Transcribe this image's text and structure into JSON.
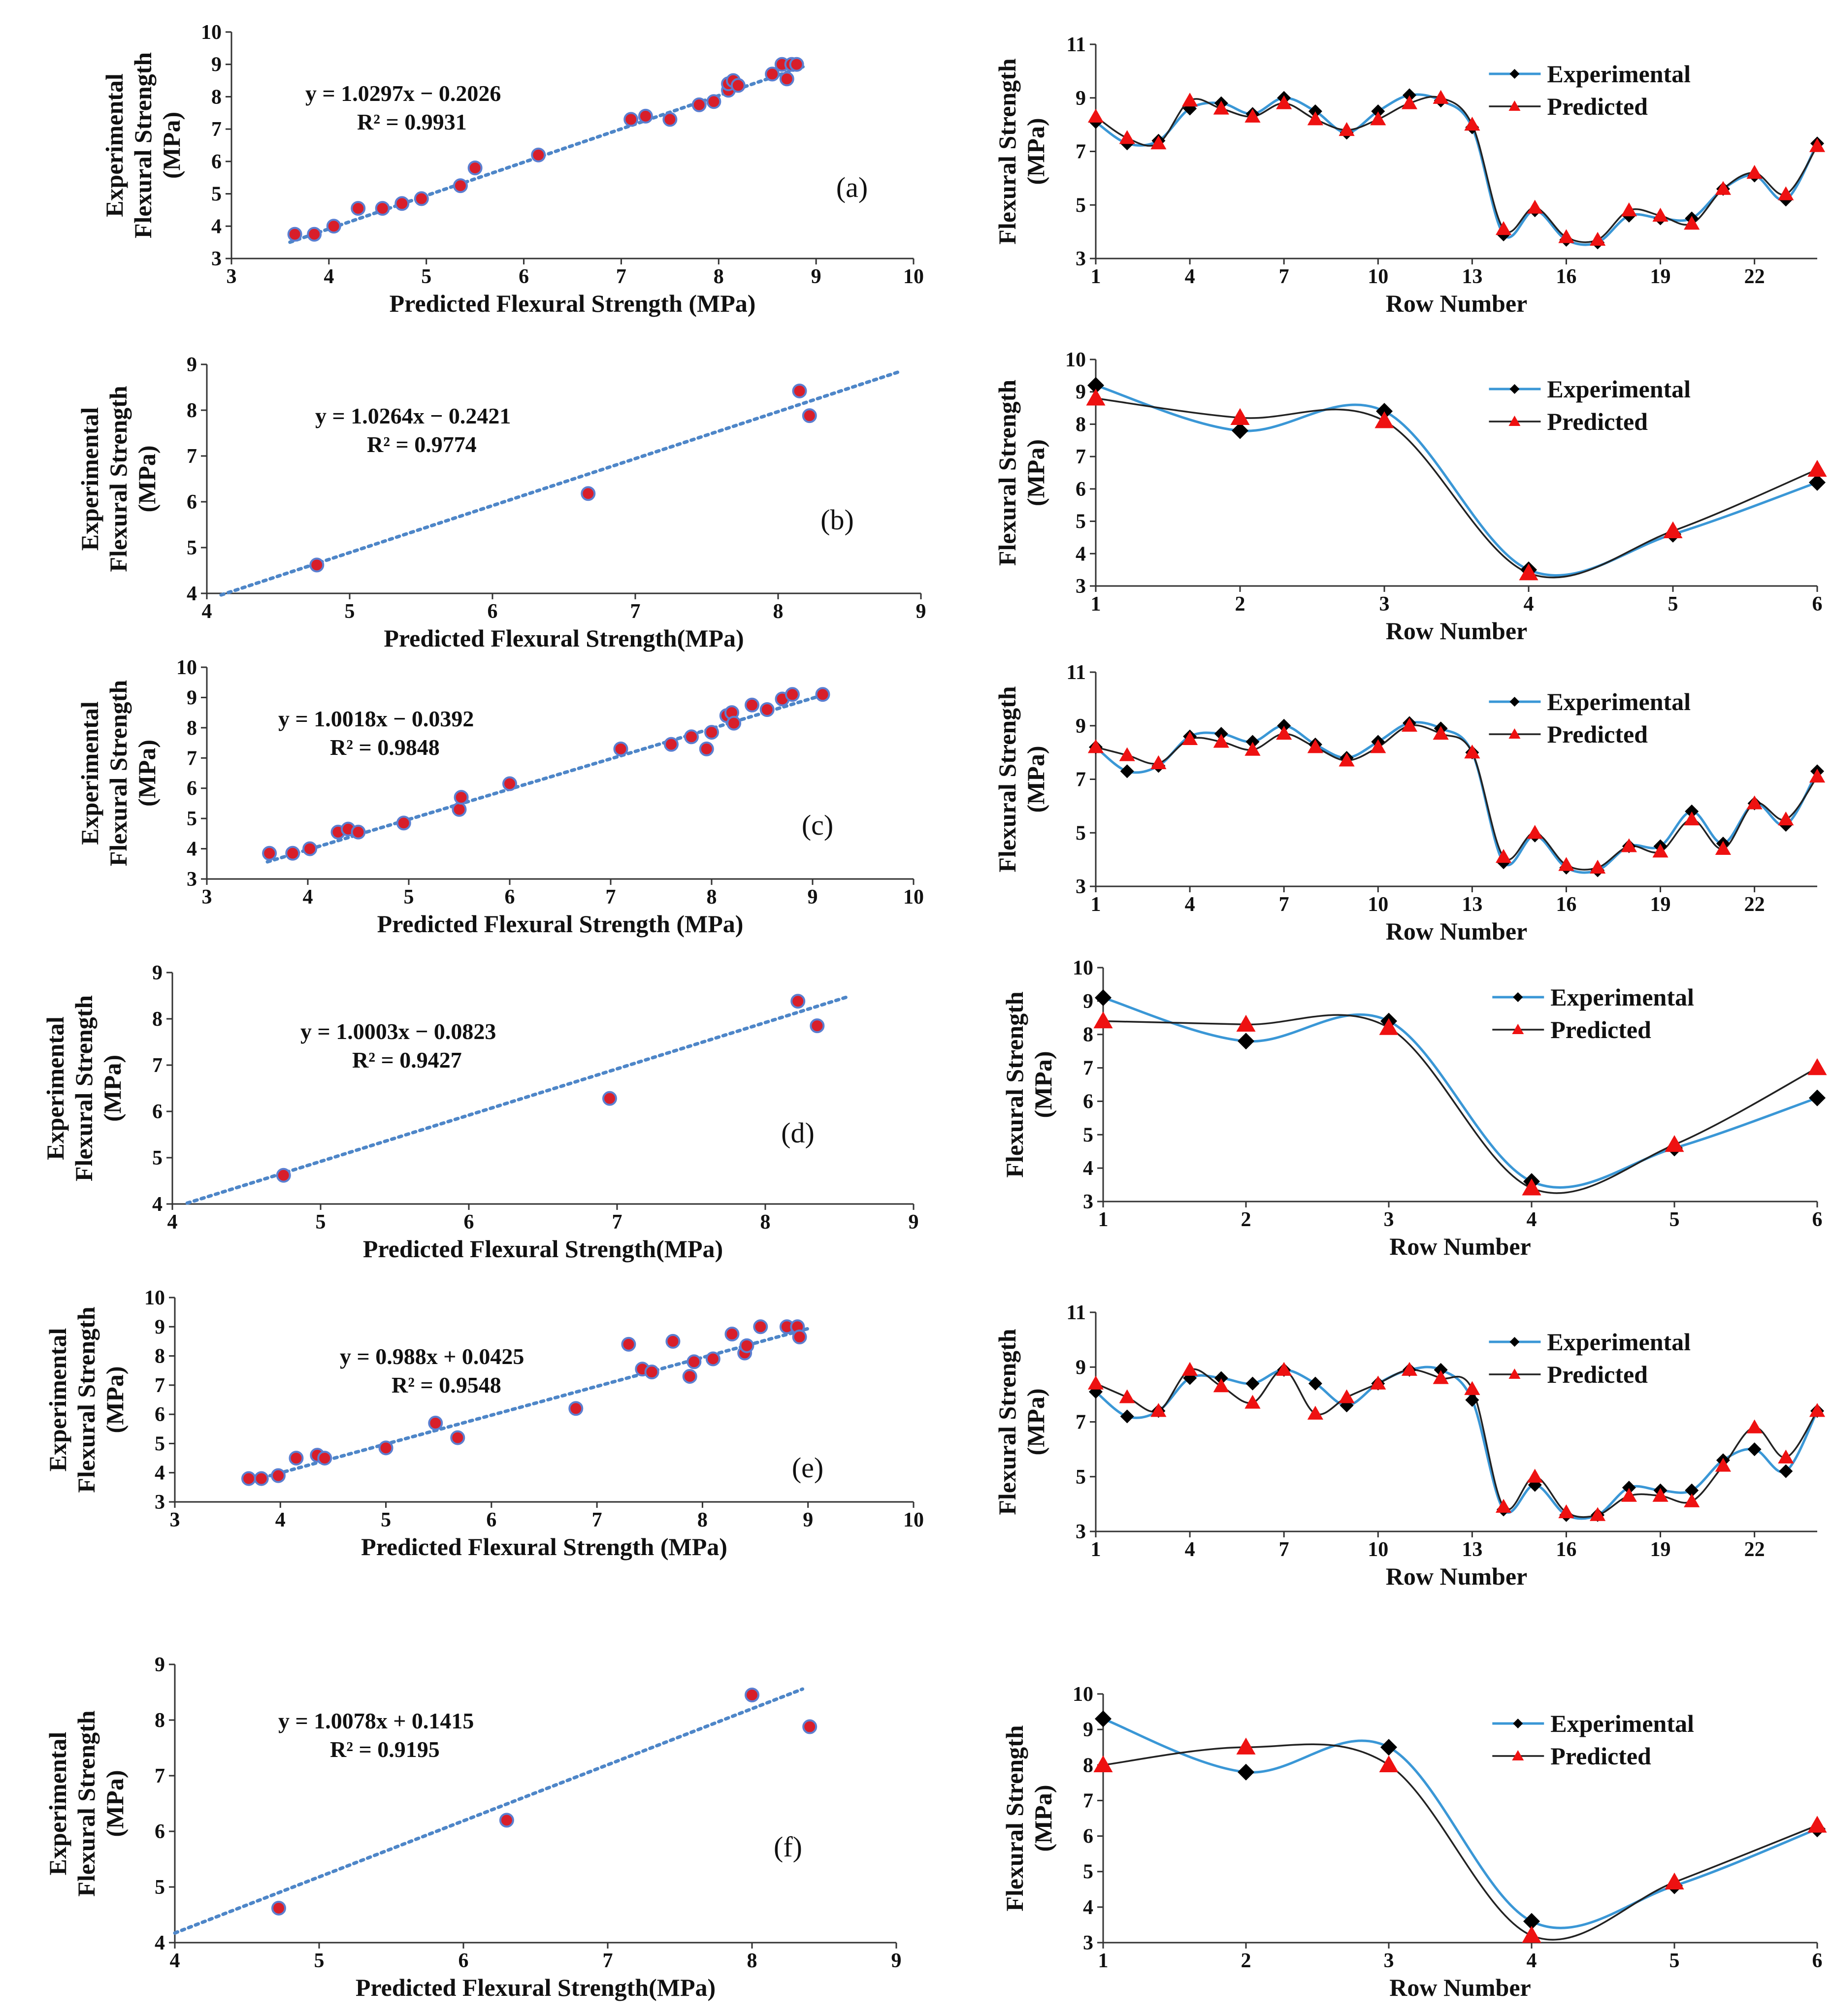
{
  "colors": {
    "scatter_fill": "#d81e2a",
    "scatter_edge": "#5b7fd1",
    "trend": "#4e86c8",
    "experimental_line": "#3a97d6",
    "predicted_line": "#222222",
    "experimental_marker": "#000000",
    "predicted_marker": "#ee1111",
    "axis": "#333333"
  },
  "chart_data": [
    {
      "id": "a",
      "type": "scatter",
      "panel_label": "(a)",
      "xlabel": "Predicted Flexural Strength (MPa)",
      "ylabel": [
        "Experimental",
        "Flexural Strength",
        "(MPa)"
      ],
      "equation": "y = 1.0297x − 0.2026",
      "r2": "R² = 0.9931",
      "xlim": [
        3,
        10
      ],
      "ylim": [
        3,
        10
      ],
      "xticks": [
        3,
        4,
        5,
        6,
        7,
        8,
        9,
        10
      ],
      "yticks": [
        3,
        4,
        5,
        6,
        7,
        8,
        9,
        10
      ],
      "trend": {
        "slope": 1.0297,
        "intercept": -0.2026,
        "x_range": [
          3.6,
          8.9
        ]
      },
      "x": [
        3.65,
        3.85,
        4.05,
        4.3,
        4.55,
        4.75,
        4.95,
        5.35,
        5.5,
        6.15,
        7.1,
        7.25,
        7.5,
        7.8,
        7.95,
        8.1,
        8.1,
        8.15,
        8.2,
        8.55,
        8.65,
        8.7,
        8.75,
        8.8
      ],
      "y": [
        3.75,
        3.75,
        4.0,
        4.55,
        4.55,
        4.7,
        4.85,
        5.25,
        5.8,
        6.2,
        7.3,
        7.4,
        7.3,
        7.75,
        7.85,
        8.2,
        8.4,
        8.5,
        8.35,
        8.7,
        9.0,
        8.55,
        9.0,
        9.0
      ]
    },
    {
      "id": "a2",
      "type": "line",
      "xlabel": "Row Number",
      "ylabel": [
        "Flexural Strength",
        "(MPa)"
      ],
      "xlim": [
        1,
        24
      ],
      "ylim": [
        3,
        11
      ],
      "xticks": [
        1,
        4,
        7,
        10,
        13,
        16,
        19,
        22
      ],
      "yticks": [
        3,
        5,
        7,
        9,
        11
      ],
      "legend": [
        "Experimental",
        "Predicted"
      ],
      "x": [
        1,
        2,
        3,
        4,
        5,
        6,
        7,
        8,
        9,
        10,
        11,
        12,
        13,
        14,
        15,
        16,
        17,
        18,
        19,
        20,
        21,
        22,
        23,
        24
      ],
      "series": [
        {
          "name": "Experimental",
          "values": [
            8.1,
            7.3,
            7.4,
            8.6,
            8.8,
            8.4,
            9.0,
            8.5,
            7.7,
            8.5,
            9.1,
            8.9,
            7.9,
            3.9,
            4.8,
            3.7,
            3.6,
            4.6,
            4.5,
            4.5,
            5.6,
            6.1,
            5.2,
            7.3
          ]
        },
        {
          "name": "Predicted",
          "values": [
            8.3,
            7.5,
            7.3,
            8.9,
            8.6,
            8.3,
            8.8,
            8.2,
            7.8,
            8.2,
            8.8,
            9.0,
            8.0,
            4.1,
            4.9,
            3.8,
            3.7,
            4.8,
            4.6,
            4.3,
            5.6,
            6.2,
            5.4,
            7.2
          ]
        }
      ]
    },
    {
      "id": "b",
      "type": "scatter",
      "panel_label": "(b)",
      "xlabel": "Predicted Flexural Strength(MPa)",
      "ylabel": [
        "Experimental",
        "Flexural Strength",
        "(MPa)"
      ],
      "equation": "y = 1.0264x − 0.2421",
      "r2": "R² = 0.9774",
      "xlim": [
        4,
        9
      ],
      "ylim": [
        4,
        9
      ],
      "xticks": [
        4,
        5,
        6,
        7,
        8,
        9
      ],
      "yticks": [
        4,
        5,
        6,
        7,
        8,
        9
      ],
      "trend": {
        "slope": 1.0264,
        "intercept": -0.2421,
        "x_range": [
          4.1,
          8.85
        ]
      },
      "x": [
        4.77,
        6.67,
        8.15,
        8.22
      ],
      "y": [
        4.62,
        6.18,
        8.42,
        7.88
      ]
    },
    {
      "id": "b2",
      "type": "line",
      "xlabel": "Row Number",
      "ylabel": [
        "Flexural Strength",
        "(MPa)"
      ],
      "xlim": [
        1,
        6
      ],
      "ylim": [
        3,
        10
      ],
      "xticks": [
        1,
        2,
        3,
        4,
        5,
        6
      ],
      "yticks": [
        3,
        4,
        5,
        6,
        7,
        8,
        9,
        10
      ],
      "legend": [
        "Experimental",
        "Predicted"
      ],
      "x": [
        1,
        2,
        3,
        4,
        5,
        6
      ],
      "series": [
        {
          "name": "Experimental",
          "values": [
            9.2,
            7.8,
            8.4,
            3.5,
            4.6,
            6.2
          ]
        },
        {
          "name": "Predicted",
          "values": [
            8.8,
            8.2,
            8.1,
            3.4,
            4.7,
            6.6
          ]
        }
      ]
    },
    {
      "id": "c",
      "type": "scatter",
      "panel_label": "(c)",
      "xlabel": "Predicted Flexural Strength (MPa)",
      "ylabel": [
        "Experimental",
        "Flexural Strength",
        "(MPa)"
      ],
      "equation": "y = 1.0018x − 0.0392",
      "r2": "R² = 0.9848",
      "xlim": [
        3,
        10
      ],
      "ylim": [
        3,
        10
      ],
      "xticks": [
        3,
        4,
        5,
        6,
        7,
        8,
        9,
        10
      ],
      "yticks": [
        3,
        4,
        5,
        6,
        7,
        8,
        9,
        10
      ],
      "trend": {
        "slope": 1.0018,
        "intercept": -0.0392,
        "x_range": [
          3.6,
          9.1
        ]
      },
      "x": [
        3.62,
        3.85,
        4.02,
        4.3,
        4.4,
        4.5,
        4.95,
        5.5,
        5.52,
        6.0,
        7.1,
        7.6,
        7.8,
        7.95,
        8.0,
        8.15,
        8.2,
        8.22,
        8.4,
        8.55,
        8.7,
        8.8,
        9.1
      ],
      "y": [
        3.85,
        3.85,
        4.0,
        4.55,
        4.65,
        4.55,
        4.85,
        5.3,
        5.7,
        6.15,
        7.3,
        7.45,
        7.7,
        7.3,
        7.85,
        8.4,
        8.5,
        8.15,
        8.75,
        8.6,
        8.95,
        9.1,
        9.1
      ]
    },
    {
      "id": "c2",
      "type": "line",
      "xlabel": "Row Number",
      "ylabel": [
        "Flexural Strength",
        "(MPa)"
      ],
      "xlim": [
        1,
        24
      ],
      "ylim": [
        3,
        11
      ],
      "xticks": [
        1,
        4,
        7,
        10,
        13,
        16,
        19,
        22
      ],
      "yticks": [
        3,
        5,
        7,
        9,
        11
      ],
      "legend": [
        "Experimental",
        "Predicted"
      ],
      "x": [
        1,
        2,
        3,
        4,
        5,
        6,
        7,
        8,
        9,
        10,
        11,
        12,
        13,
        14,
        15,
        16,
        17,
        18,
        19,
        20,
        21,
        22,
        23,
        24
      ],
      "series": [
        {
          "name": "Experimental",
          "values": [
            8.2,
            7.3,
            7.5,
            8.6,
            8.7,
            8.4,
            9.0,
            8.3,
            7.8,
            8.4,
            9.1,
            8.9,
            8.0,
            3.9,
            4.9,
            3.7,
            3.6,
            4.5,
            4.5,
            5.8,
            4.6,
            6.1,
            5.3,
            7.3
          ]
        },
        {
          "name": "Predicted",
          "values": [
            8.2,
            7.9,
            7.6,
            8.5,
            8.4,
            8.1,
            8.7,
            8.2,
            7.7,
            8.2,
            9.0,
            8.7,
            8.0,
            4.1,
            5.0,
            3.8,
            3.7,
            4.5,
            4.3,
            5.5,
            4.4,
            6.1,
            5.5,
            7.1
          ]
        }
      ]
    },
    {
      "id": "d",
      "type": "scatter",
      "panel_label": "(d)",
      "xlabel": "Predicted Flexural Strength(MPa)",
      "ylabel": [
        "Experimental",
        "Flexural Strength",
        "(MPa)"
      ],
      "equation": "y = 1.0003x − 0.0823",
      "r2": "R² = 0.9427",
      "xlim": [
        4,
        9
      ],
      "ylim": [
        4,
        9
      ],
      "xticks": [
        4,
        5,
        6,
        7,
        8,
        9
      ],
      "yticks": [
        4,
        5,
        6,
        7,
        8,
        9
      ],
      "trend": {
        "slope": 1.0003,
        "intercept": -0.0823,
        "x_range": [
          4.1,
          8.55
        ]
      },
      "x": [
        4.75,
        6.95,
        8.22,
        8.35
      ],
      "y": [
        4.62,
        6.28,
        8.38,
        7.85
      ]
    },
    {
      "id": "d2",
      "type": "line",
      "xlabel": "Row Number",
      "ylabel": [
        "Flexural Strength",
        "(MPa)"
      ],
      "xlim": [
        1,
        6
      ],
      "ylim": [
        3,
        10
      ],
      "xticks": [
        1,
        2,
        3,
        4,
        5,
        6
      ],
      "yticks": [
        3,
        4,
        5,
        6,
        7,
        8,
        9,
        10
      ],
      "legend": [
        "Experimental",
        "Predicted"
      ],
      "x": [
        1,
        2,
        3,
        4,
        5,
        6
      ],
      "series": [
        {
          "name": "Experimental",
          "values": [
            9.1,
            7.8,
            8.4,
            3.6,
            4.6,
            6.1
          ]
        },
        {
          "name": "Predicted",
          "values": [
            8.4,
            8.3,
            8.2,
            3.4,
            4.7,
            7.0
          ]
        }
      ]
    },
    {
      "id": "e",
      "type": "scatter",
      "panel_label": "(e)",
      "xlabel": "Predicted Flexural Strength (MPa)",
      "ylabel": [
        "Experimental",
        "Flexural Strength",
        "(MPa)"
      ],
      "equation": "y = 0.988x + 0.0425",
      "r2": "R² = 0.9548",
      "xlim": [
        3,
        10
      ],
      "ylim": [
        3,
        10
      ],
      "xticks": [
        3,
        4,
        5,
        6,
        7,
        8,
        9,
        10
      ],
      "yticks": [
        3,
        4,
        5,
        6,
        7,
        8,
        9,
        10
      ],
      "trend": {
        "slope": 0.988,
        "intercept": 0.0425,
        "x_range": [
          3.7,
          9.0
        ]
      },
      "x": [
        3.7,
        3.82,
        3.98,
        4.15,
        4.35,
        4.42,
        5.0,
        5.47,
        5.68,
        6.8,
        7.3,
        7.43,
        7.52,
        7.72,
        7.88,
        7.92,
        8.1,
        8.28,
        8.4,
        8.42,
        8.55,
        8.8,
        8.9,
        8.92
      ],
      "y": [
        3.8,
        3.8,
        3.9,
        4.5,
        4.6,
        4.5,
        4.85,
        5.7,
        5.2,
        6.2,
        8.4,
        7.55,
        7.45,
        8.5,
        7.3,
        7.8,
        7.9,
        8.75,
        8.1,
        8.35,
        9.0,
        9.0,
        9.0,
        8.65
      ]
    },
    {
      "id": "e2",
      "type": "line",
      "xlabel": "Row Number",
      "ylabel": [
        "Flexural Strength",
        "(MPa)"
      ],
      "xlim": [
        1,
        24
      ],
      "ylim": [
        3,
        11
      ],
      "xticks": [
        1,
        4,
        7,
        10,
        13,
        16,
        19,
        22
      ],
      "yticks": [
        3,
        5,
        7,
        9,
        11
      ],
      "legend": [
        "Experimental",
        "Predicted"
      ],
      "x": [
        1,
        2,
        3,
        4,
        5,
        6,
        7,
        8,
        9,
        10,
        11,
        12,
        13,
        14,
        15,
        16,
        17,
        18,
        19,
        20,
        21,
        22,
        23,
        24
      ],
      "series": [
        {
          "name": "Experimental",
          "values": [
            8.1,
            7.2,
            7.4,
            8.6,
            8.6,
            8.4,
            8.9,
            8.4,
            7.6,
            8.4,
            8.9,
            8.9,
            7.8,
            3.8,
            4.7,
            3.6,
            3.6,
            4.6,
            4.5,
            4.5,
            5.6,
            6.0,
            5.2,
            7.4
          ]
        },
        {
          "name": "Predicted",
          "values": [
            8.4,
            7.9,
            7.4,
            8.9,
            8.3,
            7.7,
            8.9,
            7.3,
            7.9,
            8.4,
            8.9,
            8.6,
            8.2,
            3.9,
            5.0,
            3.7,
            3.6,
            4.3,
            4.3,
            4.1,
            5.4,
            6.8,
            5.7,
            7.4
          ]
        }
      ]
    },
    {
      "id": "f",
      "type": "scatter",
      "panel_label": "(f)",
      "xlabel": "Predicted Flexural Strength(MPa)",
      "ylabel": [
        "Experimental",
        "Flexural Strength",
        "(MPa)"
      ],
      "equation": "y = 1.0078x + 0.1415",
      "r2": "R² = 0.9195",
      "xlim": [
        4,
        9
      ],
      "ylim": [
        4,
        9
      ],
      "xticks": [
        4,
        5,
        6,
        7,
        8,
        9
      ],
      "yticks": [
        4,
        5,
        6,
        7,
        8,
        9
      ],
      "trend": {
        "slope": 1.0078,
        "intercept": 0.1415,
        "x_range": [
          4.0,
          8.35
        ]
      },
      "x": [
        4.72,
        6.3,
        8.0,
        8.4
      ],
      "y": [
        4.62,
        6.2,
        8.45,
        7.88
      ]
    },
    {
      "id": "f2",
      "type": "line",
      "xlabel": "Row Number",
      "ylabel": [
        "Flexural Strength",
        "(MPa)"
      ],
      "xlim": [
        1,
        6
      ],
      "ylim": [
        3,
        10
      ],
      "xticks": [
        1,
        2,
        3,
        4,
        5,
        6
      ],
      "yticks": [
        3,
        4,
        5,
        6,
        7,
        8,
        9,
        10
      ],
      "legend": [
        "Experimental",
        "Predicted"
      ],
      "x": [
        1,
        2,
        3,
        4,
        5,
        6
      ],
      "series": [
        {
          "name": "Experimental",
          "values": [
            9.3,
            7.8,
            8.5,
            3.6,
            4.6,
            6.2
          ]
        },
        {
          "name": "Predicted",
          "values": [
            8.0,
            8.5,
            8.0,
            3.2,
            4.7,
            6.3
          ]
        }
      ]
    }
  ]
}
